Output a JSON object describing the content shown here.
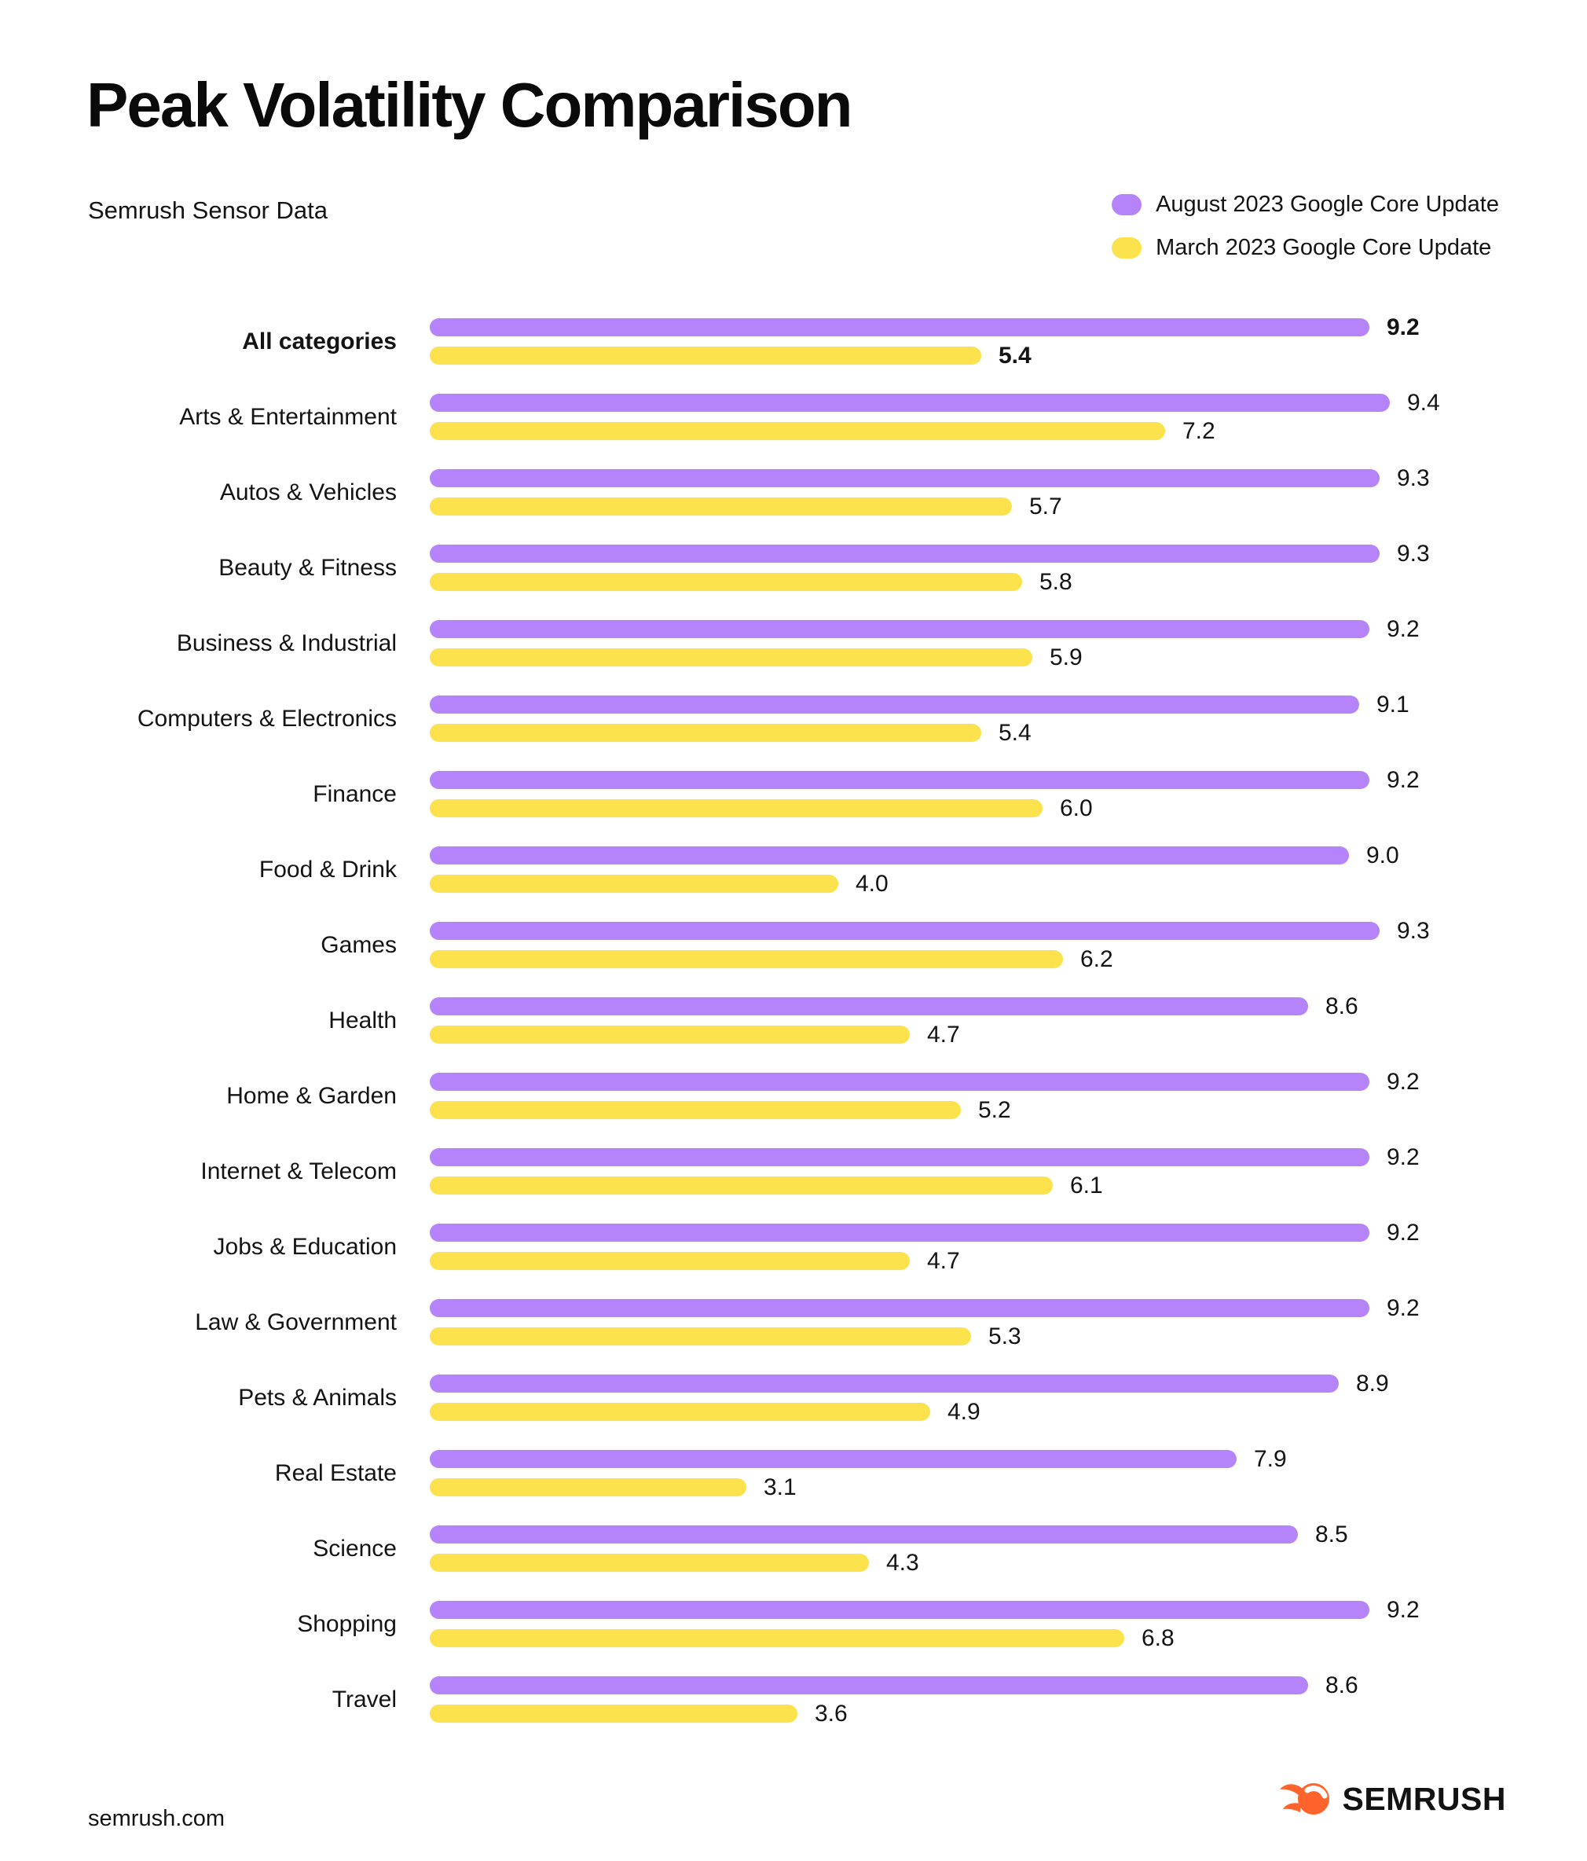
{
  "header": {
    "title": "Peak Volatility Comparison",
    "subtitle": "Semrush Sensor Data"
  },
  "legend": [
    {
      "label": "August 2023 Google Core Update",
      "color": "#B583FA"
    },
    {
      "label": "March 2023 Google Core Update",
      "color": "#FCE34D"
    }
  ],
  "chart_data": {
    "type": "bar",
    "orientation": "horizontal",
    "title": "Peak Volatility Comparison",
    "subtitle": "Semrush Sensor Data",
    "xlim": [
      0,
      9.4
    ],
    "grid": false,
    "legend_position": "top-right",
    "value_labels": "end-of-bar, one decimal",
    "emphasized_category": "All categories",
    "categories": [
      "All categories",
      "Arts & Entertainment",
      "Autos & Vehicles",
      "Beauty & Fitness",
      "Business & Industrial",
      "Computers & Electronics",
      "Finance",
      "Food & Drink",
      "Games",
      "Health",
      "Home & Garden",
      "Internet & Telecom",
      "Jobs & Education",
      "Law & Government",
      "Pets & Animals",
      "Real Estate",
      "Science",
      "Shopping",
      "Travel"
    ],
    "series": [
      {
        "name": "August 2023 Google Core Update",
        "color": "#B583FA",
        "values": [
          9.2,
          9.4,
          9.3,
          9.3,
          9.2,
          9.1,
          9.2,
          9.0,
          9.3,
          8.6,
          9.2,
          9.2,
          9.2,
          9.2,
          8.9,
          7.9,
          8.5,
          9.2,
          8.6
        ]
      },
      {
        "name": "March 2023 Google Core Update",
        "color": "#FCE34D",
        "values": [
          5.4,
          7.2,
          5.7,
          5.8,
          5.9,
          5.4,
          6.0,
          4.0,
          6.2,
          4.7,
          5.2,
          6.1,
          4.7,
          5.3,
          4.9,
          3.1,
          4.3,
          6.8,
          3.6
        ]
      }
    ]
  },
  "footer": {
    "website": "semrush.com",
    "brand": "SEMRUSH",
    "brand_color": "#FF642D"
  }
}
